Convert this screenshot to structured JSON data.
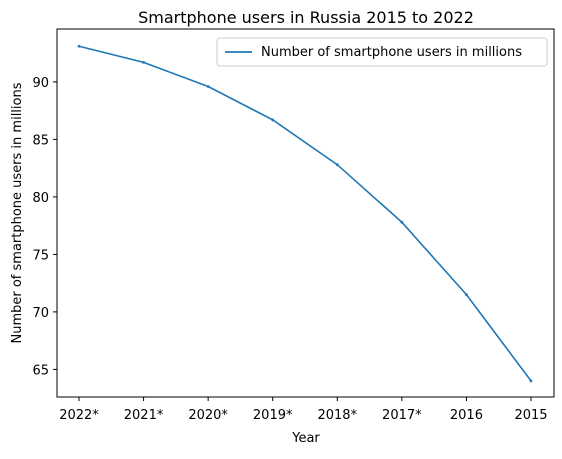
{
  "chart_data": {
    "type": "line",
    "title": "Smartphone users in Russia 2015 to 2022",
    "xlabel": "Year",
    "ylabel": "Number of smartphone users in millions",
    "categories": [
      "2022*",
      "2021*",
      "2020*",
      "2019*",
      "2018*",
      "2017*",
      "2016",
      "2015"
    ],
    "series": [
      {
        "name": "Number of smartphone users in millions",
        "values": [
          93.1,
          91.7,
          89.6,
          86.7,
          82.8,
          77.8,
          71.5,
          64.0
        ],
        "color": "#1f77b4"
      }
    ],
    "ylim": [
      62.6,
      94.6
    ],
    "yticks": [
      65,
      70,
      75,
      80,
      85,
      90
    ],
    "grid": false,
    "legend": "top-right"
  }
}
